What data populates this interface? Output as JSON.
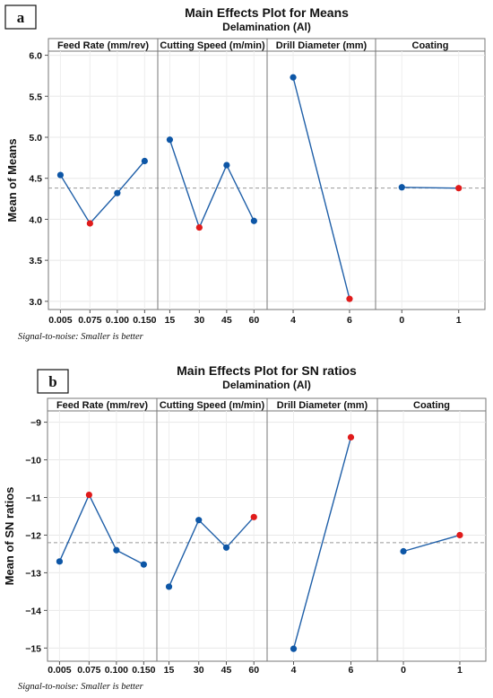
{
  "chart_data": [
    {
      "type": "line",
      "badge": "a",
      "title": "Main Effects Plot for Means",
      "subtitle": "Delamination (Al)",
      "ylabel": "Mean of Means",
      "ylim": [
        2.9,
        6.05
      ],
      "yticks": [
        "3.0",
        "3.5",
        "4.0",
        "4.5",
        "5.0",
        "5.5",
        "6.0"
      ],
      "reference_line": 4.38,
      "note": "Signal-to-noise: Smaller is better",
      "panels": [
        {
          "label": "Feed Rate (mm/rev)",
          "categories": [
            "0.005",
            "0.075",
            "0.100",
            "0.150"
          ],
          "values": [
            4.54,
            3.95,
            4.32,
            4.71
          ],
          "optimal_index": 1
        },
        {
          "label": "Cutting Speed (m/min)",
          "categories": [
            "15",
            "30",
            "45",
            "60"
          ],
          "values": [
            4.97,
            3.9,
            4.66,
            3.98
          ],
          "optimal_index": 1
        },
        {
          "label": "Drill Diameter (mm)",
          "categories": [
            "4",
            "6"
          ],
          "values": [
            5.73,
            3.03
          ],
          "optimal_index": 1
        },
        {
          "label": "Coating",
          "categories": [
            "0",
            "1"
          ],
          "values": [
            4.39,
            4.38
          ],
          "optimal_index": 1
        }
      ],
      "colors": {
        "line": "#1f5fa8",
        "point": "#0d56a6",
        "optimal": "#e01b1b",
        "reference": "#999999"
      }
    },
    {
      "type": "line",
      "badge": "b",
      "title": "Main Effects Plot for SN ratios",
      "subtitle": "Delamination (Al)",
      "ylabel": "Mean of SN ratios",
      "ylim": [
        -15.35,
        -8.7
      ],
      "yticks": [
        "-15",
        "-14",
        "-13",
        "-12",
        "-11",
        "-10",
        "-9"
      ],
      "reference_line": -12.2,
      "note": "Signal-to-noise: Smaller is better",
      "panels": [
        {
          "label": "Feed Rate (mm/rev)",
          "categories": [
            "0.005",
            "0.075",
            "0.100",
            "0.150"
          ],
          "values": [
            -12.7,
            -10.93,
            -12.4,
            -12.78
          ],
          "optimal_index": 1
        },
        {
          "label": "Cutting Speed (m/min)",
          "categories": [
            "15",
            "30",
            "45",
            "60"
          ],
          "values": [
            -13.37,
            -11.6,
            -12.33,
            -11.52
          ],
          "optimal_index": 3
        },
        {
          "label": "Drill Diameter (mm)",
          "categories": [
            "4",
            "6"
          ],
          "values": [
            -15.02,
            -9.4
          ],
          "optimal_index": 1
        },
        {
          "label": "Coating",
          "categories": [
            "0",
            "1"
          ],
          "values": [
            -12.43,
            -12.0
          ],
          "optimal_index": 1
        }
      ],
      "colors": {
        "line": "#1f5fa8",
        "point": "#0d56a6",
        "optimal": "#e01b1b",
        "reference": "#999999"
      }
    }
  ]
}
